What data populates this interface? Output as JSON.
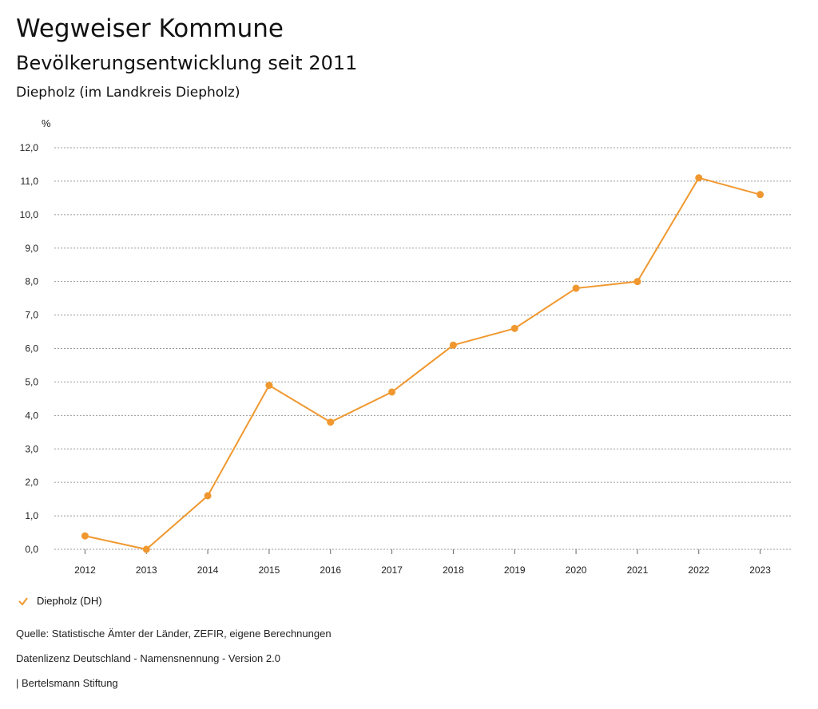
{
  "header": {
    "title": "Wegweiser Kommune",
    "subtitle": "Bevölkerungsentwicklung seit 2011",
    "region": "Diepholz (im Landkreis Diepholz)"
  },
  "chart_data": {
    "type": "line",
    "ylabel": "%",
    "ylim": [
      0,
      12
    ],
    "yticks": [
      "0,0",
      "1,0",
      "2,0",
      "3,0",
      "4,0",
      "5,0",
      "6,0",
      "7,0",
      "8,0",
      "9,0",
      "10,0",
      "11,0",
      "12,0"
    ],
    "categories": [
      "2012",
      "2013",
      "2014",
      "2015",
      "2016",
      "2017",
      "2018",
      "2019",
      "2020",
      "2021",
      "2022",
      "2023"
    ],
    "series": [
      {
        "name": "Diepholz (DH)",
        "color": "#f0982f",
        "values": [
          0.4,
          0.0,
          1.6,
          4.9,
          3.8,
          4.7,
          6.1,
          6.6,
          7.8,
          8.0,
          11.1,
          10.6
        ]
      }
    ],
    "grid": true,
    "legend": "bottom-left"
  },
  "footer": {
    "source": "Quelle: Statistische Ämter der Länder, ZEFIR, eigene Berechnungen",
    "license": "Datenlizenz Deutschland - Namensnennung - Version 2.0",
    "brand": "| Bertelsmann Stiftung"
  }
}
